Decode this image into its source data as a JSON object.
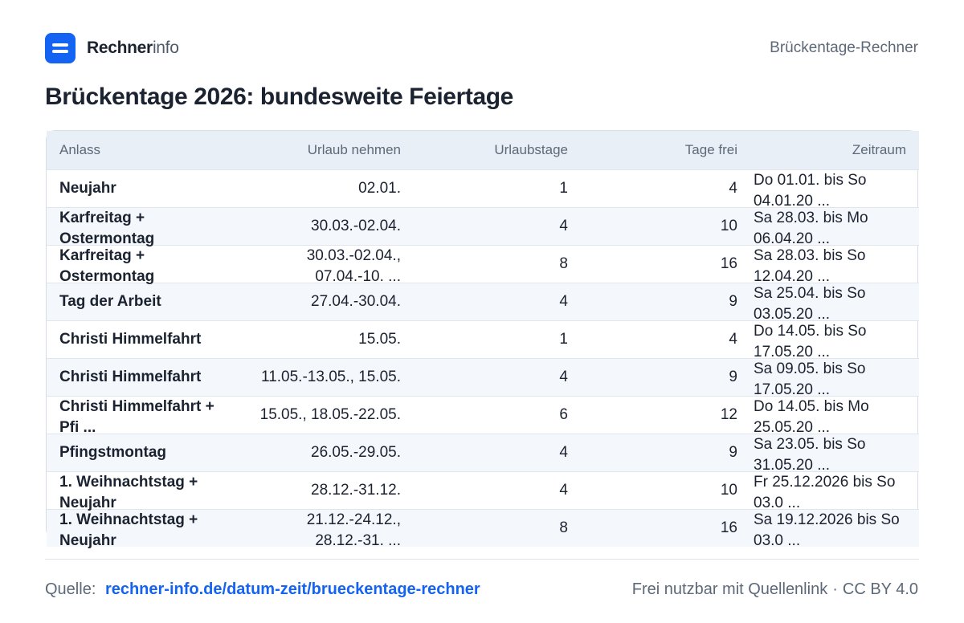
{
  "header": {
    "brand_strong": "Rechner",
    "brand_light": "info",
    "right_label": "Brückentage-Rechner"
  },
  "title": "Brückentage 2026: bundesweite Feiertage",
  "table": {
    "columns": [
      "Anlass",
      "Urlaub nehmen",
      "Urlaubstage",
      "Tage frei",
      "Zeitraum"
    ],
    "rows": [
      {
        "anlass": "Neujahr",
        "urlaub": "02.01.",
        "urlaubstage": "1",
        "frei": "4",
        "zeitraum": "Do 01.01. bis So 04.01.20 ..."
      },
      {
        "anlass": "Karfreitag + Ostermontag",
        "urlaub": "30.03.-02.04.",
        "urlaubstage": "4",
        "frei": "10",
        "zeitraum": "Sa 28.03. bis Mo 06.04.20 ..."
      },
      {
        "anlass": "Karfreitag + Ostermontag",
        "urlaub": "30.03.-02.04., 07.04.-10. ...",
        "urlaubstage": "8",
        "frei": "16",
        "zeitraum": "Sa 28.03. bis So 12.04.20 ..."
      },
      {
        "anlass": "Tag der Arbeit",
        "urlaub": "27.04.-30.04.",
        "urlaubstage": "4",
        "frei": "9",
        "zeitraum": "Sa 25.04. bis So 03.05.20 ..."
      },
      {
        "anlass": "Christi Himmelfahrt",
        "urlaub": "15.05.",
        "urlaubstage": "1",
        "frei": "4",
        "zeitraum": "Do 14.05. bis So 17.05.20 ..."
      },
      {
        "anlass": "Christi Himmelfahrt",
        "urlaub": "11.05.-13.05., 15.05.",
        "urlaubstage": "4",
        "frei": "9",
        "zeitraum": "Sa 09.05. bis So 17.05.20 ..."
      },
      {
        "anlass": "Christi Himmelfahrt + Pfi ...",
        "urlaub": "15.05., 18.05.-22.05.",
        "urlaubstage": "6",
        "frei": "12",
        "zeitraum": "Do 14.05. bis Mo 25.05.20 ..."
      },
      {
        "anlass": "Pfingstmontag",
        "urlaub": "26.05.-29.05.",
        "urlaubstage": "4",
        "frei": "9",
        "zeitraum": "Sa 23.05. bis So 31.05.20 ..."
      },
      {
        "anlass": "1. Weihnachtstag + Neujahr",
        "urlaub": "28.12.-31.12.",
        "urlaubstage": "4",
        "frei": "10",
        "zeitraum": "Fr 25.12.2026 bis So 03.0 ..."
      },
      {
        "anlass": "1. Weihnachtstag + Neujahr",
        "urlaub": "21.12.-24.12., 28.12.-31. ...",
        "urlaubstage": "8",
        "frei": "16",
        "zeitraum": "Sa 19.12.2026 bis So 03.0 ..."
      }
    ]
  },
  "footer": {
    "source_label": "Quelle:",
    "source_link": "rechner-info.de/datum-zeit/brueckentage-rechner",
    "license_text": "Frei nutzbar mit Quellenlink",
    "separator": "·",
    "license": "CC BY 4.0"
  },
  "colors": {
    "accent": "#1463f3",
    "header_row_bg": "#e9eff6",
    "zebra_bg": "#f4f7fb",
    "text": "#1b2230",
    "muted": "#5d6878"
  },
  "icons": {
    "logo": "rechnerinfo-logo-icon"
  }
}
